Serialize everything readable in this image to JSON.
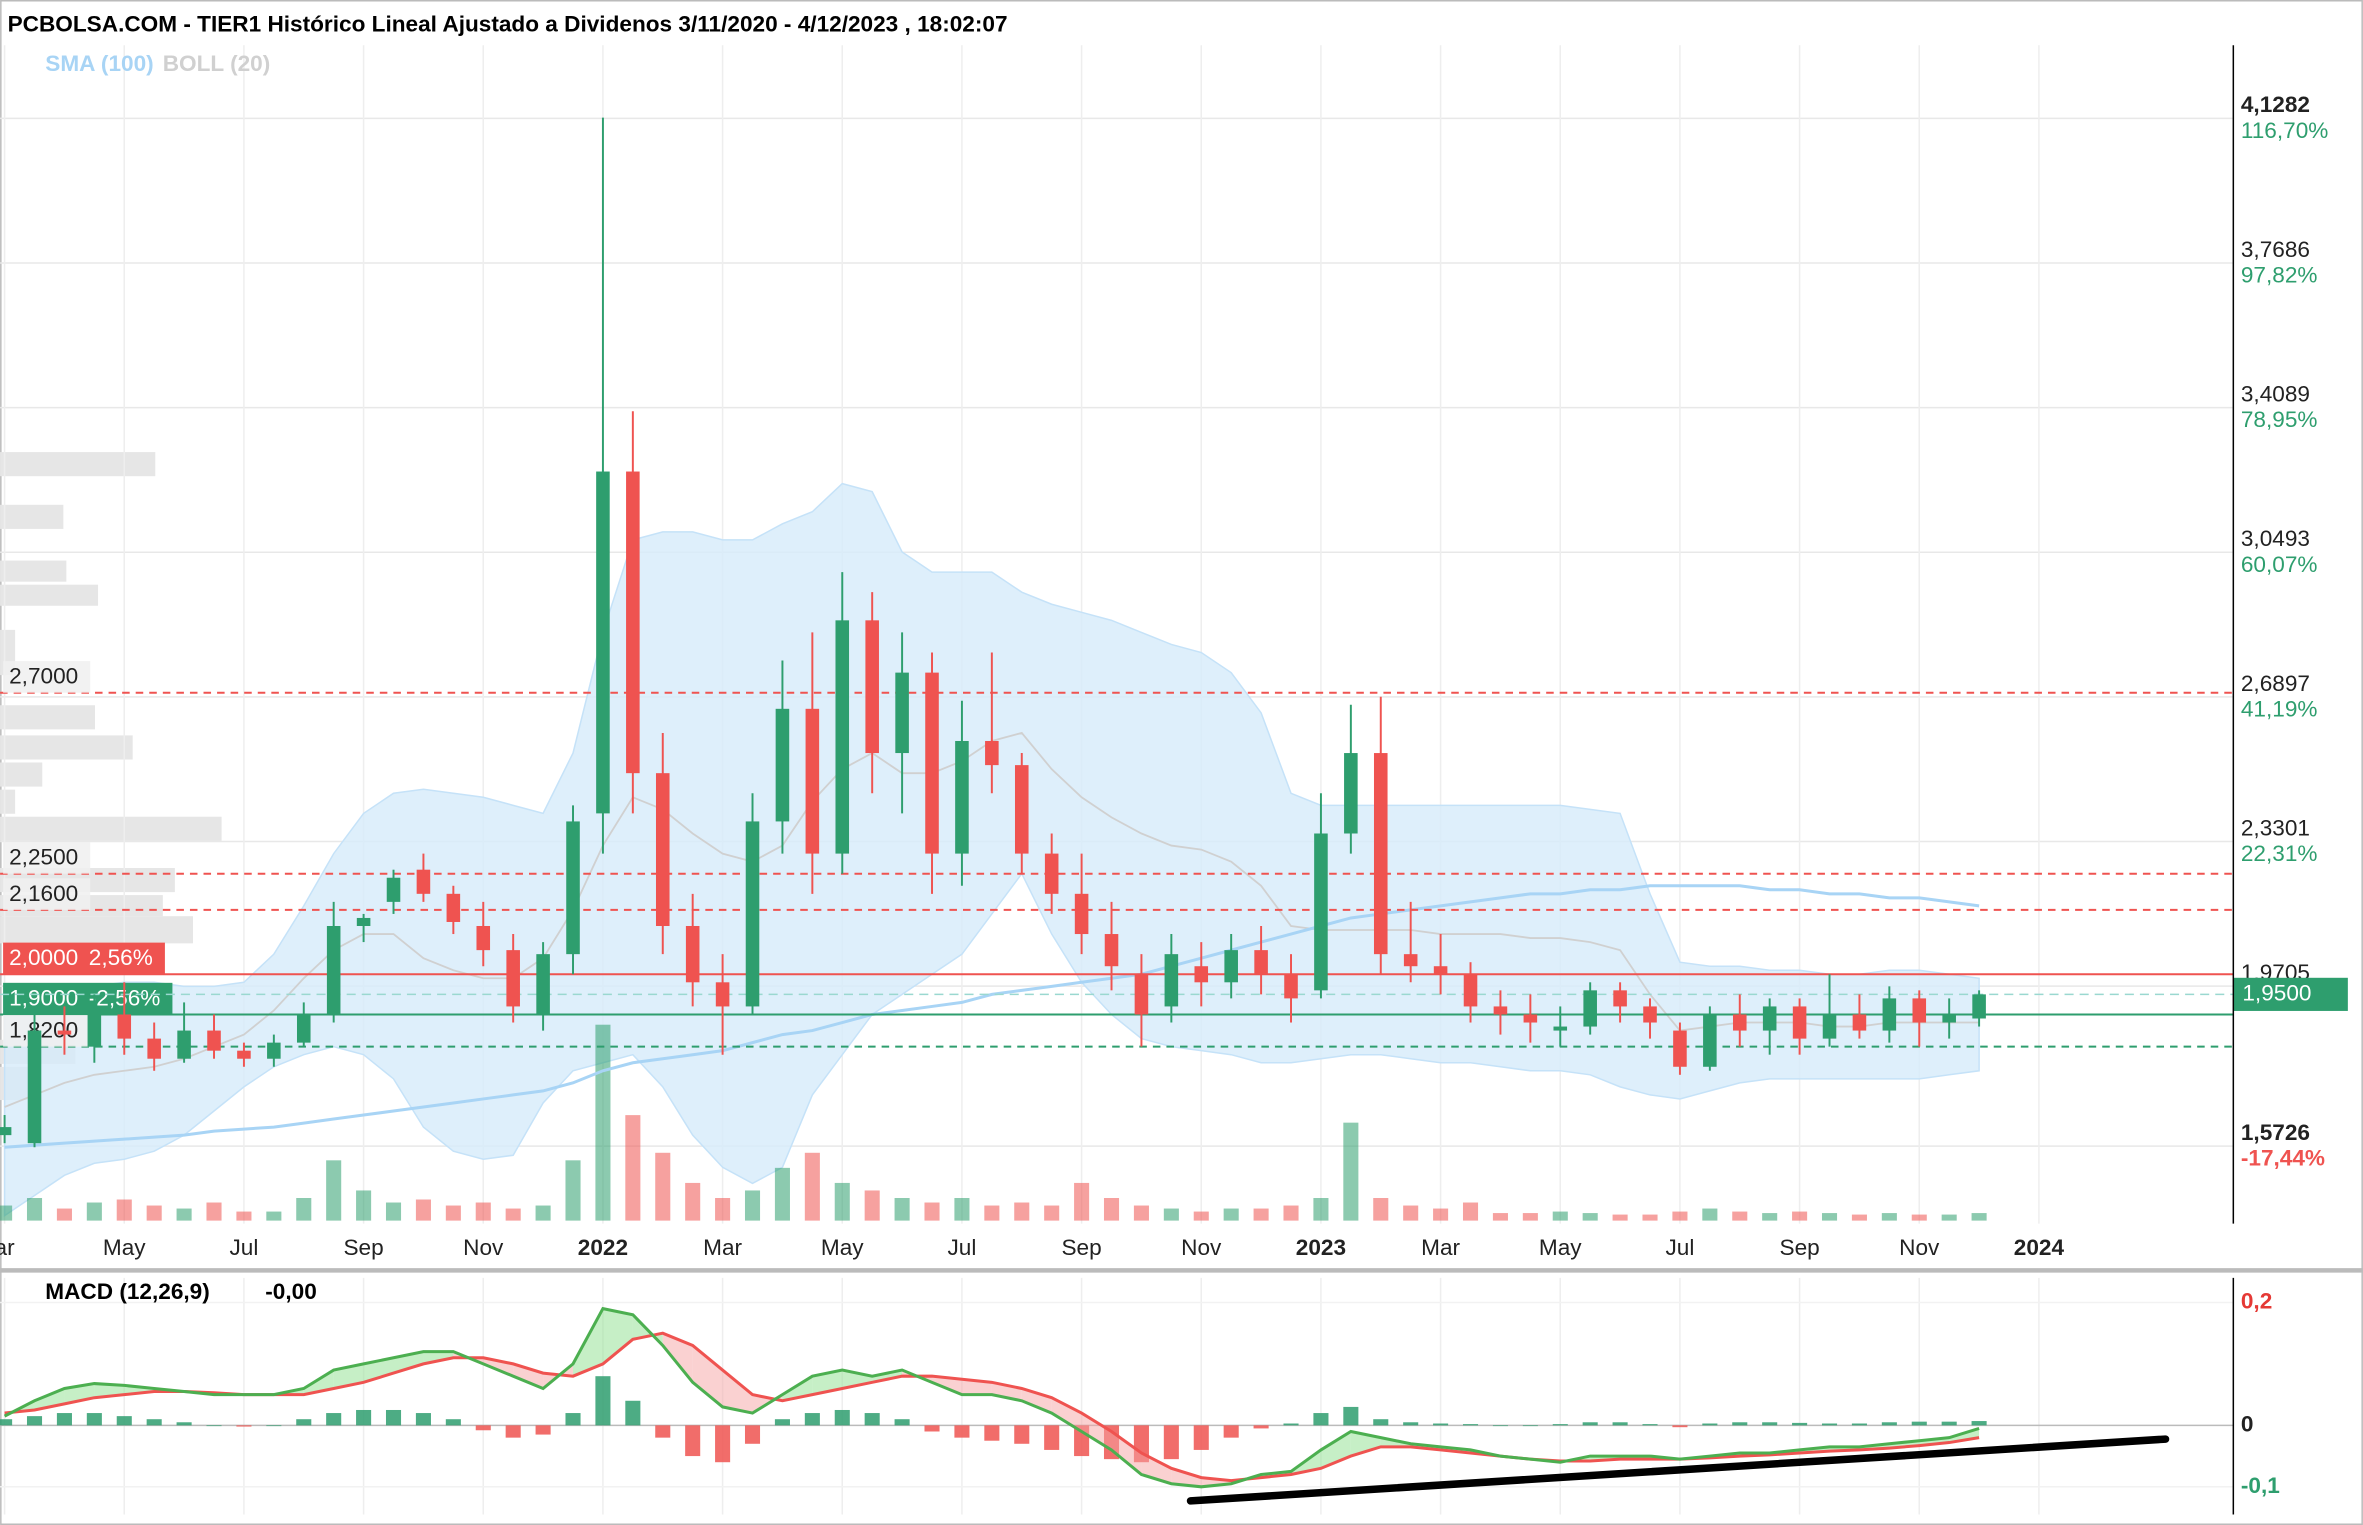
{
  "chart_data": [
    {
      "type": "candlestick",
      "title": "PCBOLSA.COM - TIER1 Histórico Lineal Ajustado a Dividenos 3/11/2020 - 4/12/2023 , 18:02:07",
      "categories": [
        "ar",
        null,
        null,
        null,
        "May",
        null,
        null,
        null,
        "Jul",
        null,
        null,
        null,
        "Sep",
        null,
        null,
        null,
        "Nov",
        null,
        null,
        null,
        "2022",
        null,
        null,
        null,
        "Mar",
        null,
        null,
        null,
        "May",
        null,
        null,
        null,
        "Jul",
        null,
        null,
        null,
        "Sep",
        null,
        null,
        null,
        "Nov",
        null,
        null,
        null,
        "2023",
        null,
        null,
        null,
        "Mar",
        null,
        null,
        null,
        "May",
        null,
        null,
        null,
        "Jul",
        null,
        null,
        null,
        "Sep",
        null,
        null,
        null,
        "Nov",
        null,
        null,
        null,
        "2024"
      ],
      "open": [
        1.6,
        1.58,
        1.86,
        1.82,
        1.9,
        1.84,
        1.79,
        1.86,
        1.81,
        1.79,
        1.83,
        1.9,
        2.12,
        2.18,
        2.26,
        2.2,
        2.12,
        2.06,
        1.9,
        2.05,
        2.4,
        3.25,
        2.5,
        2.12,
        1.98,
        1.92,
        2.38,
        2.66,
        2.3,
        2.88,
        2.55,
        2.75,
        2.3,
        2.58,
        2.52,
        2.3,
        2.2,
        2.1,
        2.0,
        1.92,
        2.02,
        1.98,
        2.06,
        2.0,
        1.96,
        2.35,
        2.55,
        2.05,
        2.02,
        2.0,
        1.92,
        1.9,
        1.86,
        1.87,
        1.96,
        1.92,
        1.86,
        1.77,
        1.9,
        1.86,
        1.92,
        1.84,
        1.9,
        1.86,
        1.94,
        1.88,
        1.89,
        null,
        null
      ],
      "high": [
        1.65,
        1.9,
        1.92,
        1.95,
        1.98,
        1.88,
        1.93,
        1.9,
        1.83,
        1.85,
        1.93,
        2.18,
        2.15,
        2.26,
        2.3,
        2.22,
        2.18,
        2.1,
        2.08,
        2.42,
        4.13,
        3.4,
        2.6,
        2.2,
        2.05,
        2.45,
        2.78,
        2.85,
        3.0,
        2.95,
        2.85,
        2.8,
        2.68,
        2.8,
        2.55,
        2.35,
        2.3,
        2.18,
        2.05,
        2.1,
        2.08,
        2.1,
        2.12,
        2.05,
        2.45,
        2.67,
        2.69,
        2.18,
        2.1,
        2.03,
        1.96,
        1.95,
        1.92,
        1.98,
        1.98,
        1.94,
        1.88,
        1.92,
        1.95,
        1.94,
        1.94,
        2.0,
        1.95,
        1.97,
        1.96,
        1.94,
        1.96,
        null,
        null
      ],
      "low": [
        1.58,
        1.57,
        1.8,
        1.78,
        1.8,
        1.76,
        1.78,
        1.79,
        1.77,
        1.77,
        1.82,
        1.88,
        2.08,
        2.15,
        2.18,
        2.1,
        2.02,
        1.88,
        1.86,
        2.0,
        2.3,
        2.4,
        2.05,
        1.92,
        1.8,
        1.9,
        2.3,
        2.2,
        2.25,
        2.45,
        2.4,
        2.2,
        2.22,
        2.45,
        2.25,
        2.15,
        2.05,
        1.96,
        1.82,
        1.88,
        1.92,
        1.94,
        1.95,
        1.88,
        1.94,
        2.3,
        2.0,
        1.98,
        1.95,
        1.88,
        1.85,
        1.83,
        1.82,
        1.85,
        1.88,
        1.84,
        1.75,
        1.76,
        1.82,
        1.8,
        1.8,
        1.82,
        1.84,
        1.83,
        1.82,
        1.84,
        1.87,
        null,
        null
      ],
      "close": [
        1.62,
        1.86,
        1.85,
        1.9,
        1.84,
        1.79,
        1.86,
        1.81,
        1.79,
        1.83,
        1.9,
        2.12,
        2.14,
        2.24,
        2.2,
        2.13,
        2.06,
        1.92,
        2.05,
        2.38,
        3.25,
        2.5,
        2.12,
        1.98,
        1.92,
        2.38,
        2.66,
        2.3,
        2.88,
        2.55,
        2.75,
        2.3,
        2.58,
        2.52,
        2.3,
        2.2,
        2.1,
        2.02,
        1.9,
        2.05,
        1.98,
        2.06,
        2.0,
        1.94,
        2.35,
        2.55,
        2.05,
        2.02,
        2.0,
        1.92,
        1.9,
        1.88,
        1.87,
        1.96,
        1.92,
        1.88,
        1.77,
        1.9,
        1.86,
        1.92,
        1.84,
        1.9,
        1.86,
        1.94,
        1.88,
        1.9,
        1.95,
        null,
        null
      ],
      "volume": [
        10,
        15,
        8,
        12,
        14,
        10,
        8,
        12,
        6,
        6,
        15,
        40,
        20,
        12,
        14,
        10,
        12,
        8,
        10,
        40,
        130,
        70,
        45,
        25,
        15,
        20,
        35,
        45,
        25,
        20,
        15,
        12,
        15,
        10,
        12,
        10,
        25,
        15,
        10,
        8,
        6,
        8,
        8,
        10,
        15,
        65,
        15,
        10,
        8,
        12,
        5,
        5,
        6,
        5,
        4,
        4,
        6,
        8,
        6,
        5,
        6,
        5,
        4,
        5,
        4,
        4,
        5,
        null,
        null
      ],
      "up_color": "#2e9e6e",
      "down_color": "#ef5350",
      "series": [
        {
          "name": "SMA (100)",
          "color": "#a8d4f5",
          "values": [
            1.57,
            1.575,
            1.58,
            1.585,
            1.59,
            1.595,
            1.6,
            1.61,
            1.615,
            1.62,
            1.63,
            1.64,
            1.65,
            1.66,
            1.67,
            1.68,
            1.69,
            1.7,
            1.71,
            1.73,
            1.76,
            1.78,
            1.79,
            1.8,
            1.81,
            1.83,
            1.85,
            1.86,
            1.88,
            1.9,
            1.91,
            1.92,
            1.93,
            1.95,
            1.96,
            1.97,
            1.98,
            1.99,
            2.0,
            2.02,
            2.04,
            2.06,
            2.08,
            2.1,
            2.12,
            2.14,
            2.15,
            2.16,
            2.17,
            2.18,
            2.19,
            2.2,
            2.2,
            2.21,
            2.21,
            2.22,
            2.22,
            2.22,
            2.22,
            2.21,
            2.21,
            2.2,
            2.2,
            2.19,
            2.19,
            2.18,
            2.17,
            null,
            null
          ]
        },
        {
          "name": "BOLL (20)",
          "color": "#d0d0d0",
          "band_color": "#d6ebfa",
          "upper": [
            1.93,
            1.95,
            1.96,
            1.97,
            1.98,
            1.98,
            1.97,
            1.97,
            1.98,
            2.05,
            2.17,
            2.3,
            2.4,
            2.45,
            2.46,
            2.45,
            2.44,
            2.42,
            2.4,
            2.55,
            2.85,
            3.08,
            3.1,
            3.1,
            3.08,
            3.08,
            3.12,
            3.15,
            3.22,
            3.2,
            3.05,
            3.0,
            3.0,
            3.0,
            2.95,
            2.92,
            2.9,
            2.88,
            2.85,
            2.82,
            2.8,
            2.75,
            2.65,
            2.45,
            2.42,
            2.42,
            2.42,
            2.42,
            2.42,
            2.42,
            2.42,
            2.42,
            2.42,
            2.41,
            2.4,
            2.2,
            2.03,
            2.02,
            2.02,
            2.01,
            2.01,
            2.0,
            2.0,
            2.01,
            2.01,
            2.0,
            1.99,
            null,
            null
          ],
          "middle": [
            1.67,
            1.7,
            1.73,
            1.75,
            1.76,
            1.77,
            1.79,
            1.82,
            1.85,
            1.91,
            1.99,
            2.06,
            2.1,
            2.1,
            2.04,
            2.01,
            1.99,
            1.99,
            2.04,
            2.16,
            2.32,
            2.44,
            2.41,
            2.35,
            2.3,
            2.28,
            2.32,
            2.43,
            2.51,
            2.55,
            2.5,
            2.5,
            2.53,
            2.58,
            2.6,
            2.51,
            2.44,
            2.39,
            2.35,
            2.32,
            2.31,
            2.28,
            2.22,
            2.12,
            2.11,
            2.11,
            2.11,
            2.11,
            2.1,
            2.1,
            2.1,
            2.09,
            2.09,
            2.08,
            2.06,
            1.95,
            1.86,
            1.87,
            1.88,
            1.88,
            1.88,
            1.87,
            1.87,
            1.88,
            1.88,
            1.88,
            1.88,
            null,
            null
          ],
          "lower": [
            1.4,
            1.45,
            1.5,
            1.53,
            1.54,
            1.56,
            1.6,
            1.66,
            1.72,
            1.77,
            1.8,
            1.82,
            1.8,
            1.74,
            1.62,
            1.56,
            1.54,
            1.55,
            1.68,
            1.76,
            1.78,
            1.8,
            1.72,
            1.6,
            1.52,
            1.48,
            1.52,
            1.7,
            1.8,
            1.9,
            1.95,
            2.0,
            2.05,
            2.15,
            2.25,
            2.1,
            1.98,
            1.9,
            1.84,
            1.82,
            1.81,
            1.8,
            1.78,
            1.78,
            1.79,
            1.8,
            1.8,
            1.79,
            1.78,
            1.78,
            1.77,
            1.76,
            1.76,
            1.75,
            1.72,
            1.7,
            1.69,
            1.71,
            1.73,
            1.74,
            1.74,
            1.74,
            1.74,
            1.74,
            1.74,
            1.75,
            1.76,
            null,
            null
          ]
        }
      ],
      "ylim": [
        1.38,
        4.31
      ],
      "yticks": [
        {
          "value": 4.1282,
          "label": "4,1282",
          "change": "116,70%"
        },
        {
          "value": 3.7686,
          "label": "3,7686",
          "change": "97,82%"
        },
        {
          "value": 3.4089,
          "label": "3,4089",
          "change": "78,95%"
        },
        {
          "value": 3.0493,
          "label": "3,0493",
          "change": "60,07%"
        },
        {
          "value": 2.6897,
          "label": "2,6897",
          "change": "41,19%"
        },
        {
          "value": 2.3301,
          "label": "2,3301",
          "change": "22,31%"
        },
        {
          "value": 1.9705,
          "label": "1,9705"
        },
        {
          "value": 1.5726,
          "label": "1,5726",
          "change": "-17,44%"
        }
      ],
      "grid": true,
      "levels": [
        {
          "value": 2.7,
          "label": "2,7000",
          "color": "#ef5350",
          "style": "dashed"
        },
        {
          "value": 2.25,
          "label": "2,2500",
          "color": "#ef5350",
          "style": "dashed"
        },
        {
          "value": 2.16,
          "label": "2,1600",
          "color": "#ef5350",
          "style": "dashed"
        },
        {
          "value": 2.0,
          "label": "2,0000",
          "change": "2,56%",
          "color": "#ef5350",
          "style": "solid"
        },
        {
          "value": 1.9,
          "label": "1,9000",
          "change": "-2,56%",
          "color": "#2e9e6e",
          "style": "solid"
        },
        {
          "value": 1.82,
          "label": "1,8200",
          "color": "#2e9e6e",
          "style": "dashed"
        }
      ],
      "last": {
        "value": 1.95,
        "label": "1,9500",
        "color": "#2e9e6e"
      }
    },
    {
      "type": "macd",
      "title": "MACD (12,26,9)",
      "current": "-0,00",
      "ylim": [
        -0.145,
        0.24
      ],
      "yticks": [
        {
          "value": 0.2,
          "label": "0,2"
        },
        0,
        {
          "value": -0.1,
          "label": "-0,1"
        }
      ],
      "macd_color": "#4caf50",
      "signal_color": "#ef5350",
      "macd": [
        0.015,
        0.04,
        0.06,
        0.068,
        0.065,
        0.06,
        0.055,
        0.05,
        0.05,
        0.05,
        0.06,
        0.09,
        0.1,
        0.11,
        0.12,
        0.12,
        0.1,
        0.08,
        0.06,
        0.1,
        0.19,
        0.18,
        0.13,
        0.07,
        0.03,
        0.02,
        0.05,
        0.08,
        0.09,
        0.08,
        0.09,
        0.07,
        0.05,
        0.05,
        0.04,
        0.02,
        -0.01,
        -0.04,
        -0.08,
        -0.095,
        -0.1,
        -0.095,
        -0.08,
        -0.075,
        -0.04,
        -0.01,
        -0.02,
        -0.03,
        -0.035,
        -0.04,
        -0.05,
        -0.055,
        -0.06,
        -0.05,
        -0.05,
        -0.05,
        -0.055,
        -0.05,
        -0.045,
        -0.045,
        -0.04,
        -0.035,
        -0.035,
        -0.03,
        -0.025,
        -0.02,
        -0.005,
        null,
        null
      ],
      "signal": [
        0.02,
        0.025,
        0.035,
        0.045,
        0.05,
        0.055,
        0.055,
        0.053,
        0.05,
        0.05,
        0.05,
        0.06,
        0.07,
        0.085,
        0.1,
        0.11,
        0.11,
        0.1,
        0.085,
        0.08,
        0.1,
        0.14,
        0.15,
        0.13,
        0.09,
        0.05,
        0.04,
        0.05,
        0.06,
        0.07,
        0.08,
        0.08,
        0.075,
        0.07,
        0.06,
        0.045,
        0.02,
        -0.01,
        -0.045,
        -0.07,
        -0.085,
        -0.09,
        -0.085,
        -0.08,
        -0.07,
        -0.05,
        -0.035,
        -0.035,
        -0.04,
        -0.045,
        -0.05,
        -0.055,
        -0.058,
        -0.058,
        -0.055,
        -0.055,
        -0.055,
        -0.053,
        -0.05,
        -0.048,
        -0.045,
        -0.042,
        -0.04,
        -0.037,
        -0.033,
        -0.028,
        -0.02,
        null,
        null
      ],
      "histogram": [
        0.01,
        0.015,
        0.02,
        0.02,
        0.015,
        0.01,
        0.005,
        0.0,
        -0.002,
        0.0,
        0.01,
        0.02,
        0.025,
        0.025,
        0.02,
        0.01,
        -0.008,
        -0.02,
        -0.015,
        0.02,
        0.08,
        0.04,
        -0.02,
        -0.05,
        -0.06,
        -0.03,
        0.01,
        0.02,
        0.025,
        0.02,
        0.01,
        -0.01,
        -0.02,
        -0.025,
        -0.03,
        -0.04,
        -0.05,
        -0.055,
        -0.06,
        -0.055,
        -0.04,
        -0.02,
        -0.005,
        0.003,
        0.02,
        0.03,
        0.01,
        0.005,
        0.003,
        0.002,
        0.0,
        0.0,
        0.002,
        0.005,
        0.005,
        0.002,
        -0.003,
        0.003,
        0.005,
        0.005,
        0.004,
        0.003,
        0.003,
        0.005,
        0.006,
        0.006,
        0.007,
        null,
        null
      ]
    }
  ]
}
